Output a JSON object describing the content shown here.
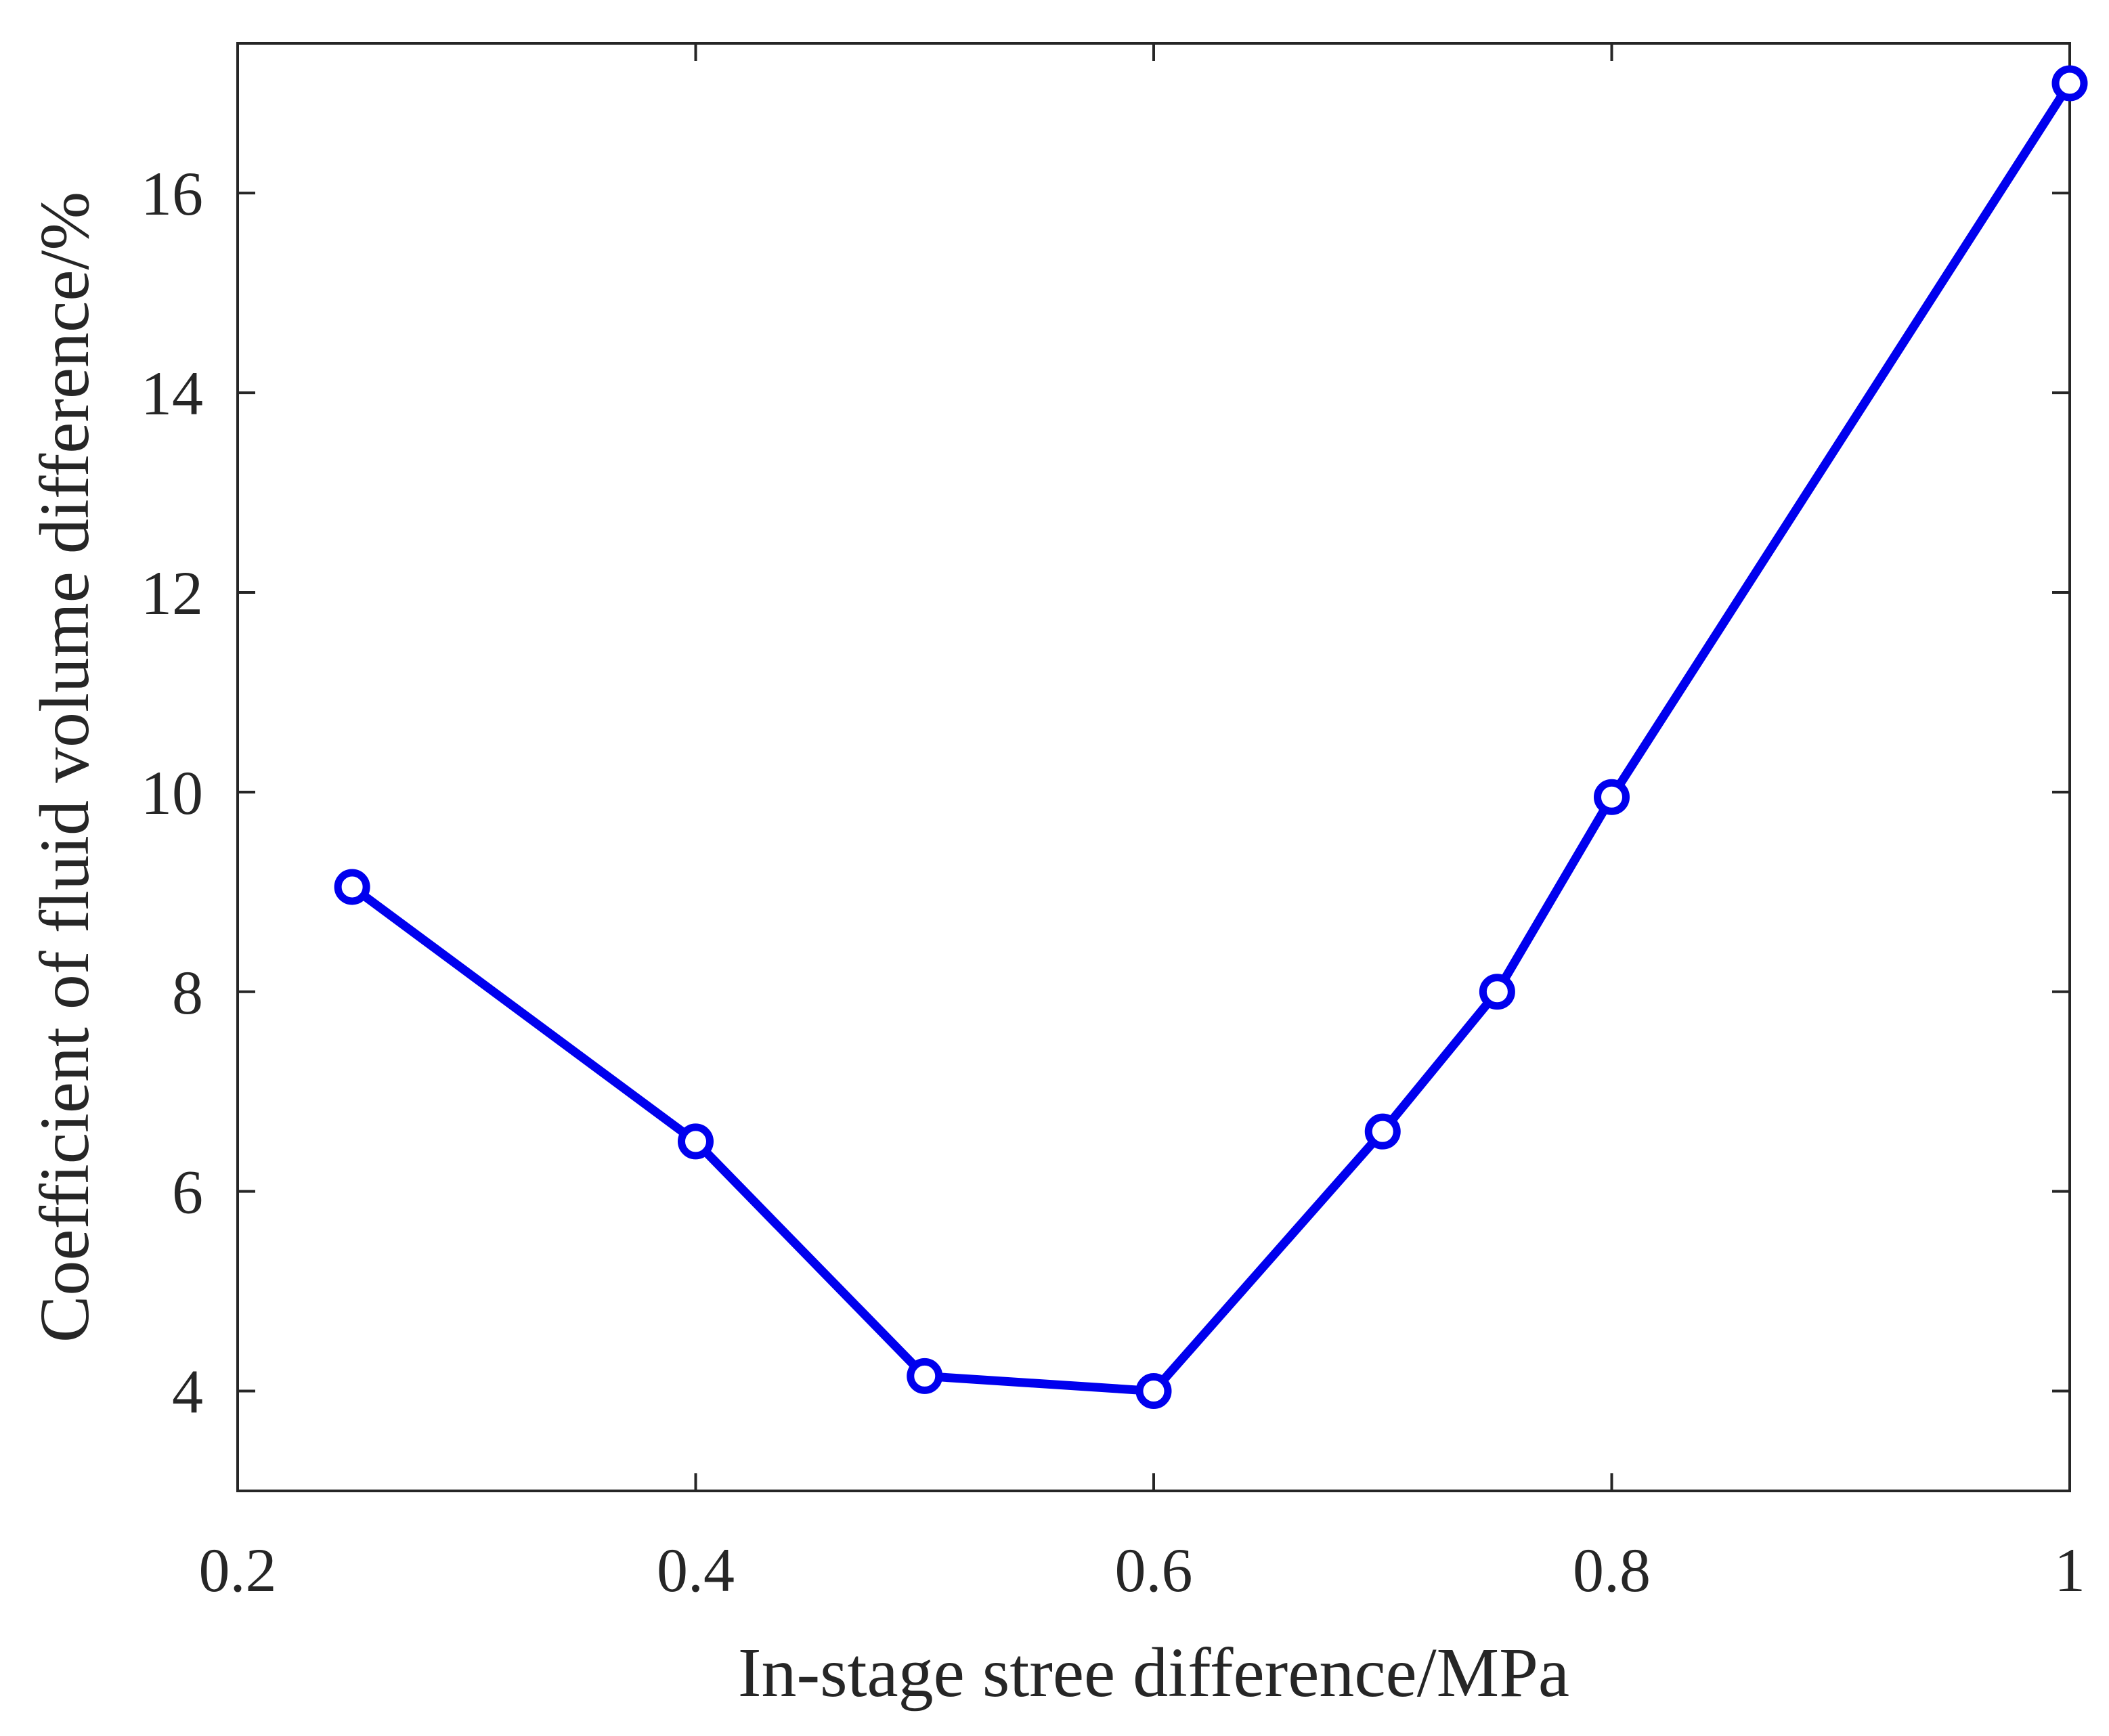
{
  "chart_data": {
    "type": "line",
    "title": "",
    "xlabel": "In-stage stree difference/MPa",
    "ylabel": "Coefficient of fluid volume difference/%",
    "xlim": [
      0.2,
      1.0
    ],
    "ylim": [
      3.0,
      17.5
    ],
    "xticks": [
      0.2,
      0.4,
      0.6,
      0.8,
      1.0
    ],
    "xtick_labels": [
      "0.2",
      "0.4",
      "0.6",
      "0.8",
      "1"
    ],
    "yticks": [
      4,
      6,
      8,
      10,
      12,
      14,
      16
    ],
    "ytick_labels": [
      "4",
      "6",
      "8",
      "10",
      "12",
      "14",
      "16"
    ],
    "grid": false,
    "series": [
      {
        "name": "coefficient",
        "color": "#0000ee",
        "marker": "circle-open",
        "x": [
          0.25,
          0.4,
          0.5,
          0.6,
          0.7,
          0.75,
          0.8,
          1.0
        ],
        "y": [
          9.05,
          6.5,
          4.15,
          4.0,
          6.6,
          8.0,
          9.95,
          17.1
        ]
      }
    ]
  }
}
